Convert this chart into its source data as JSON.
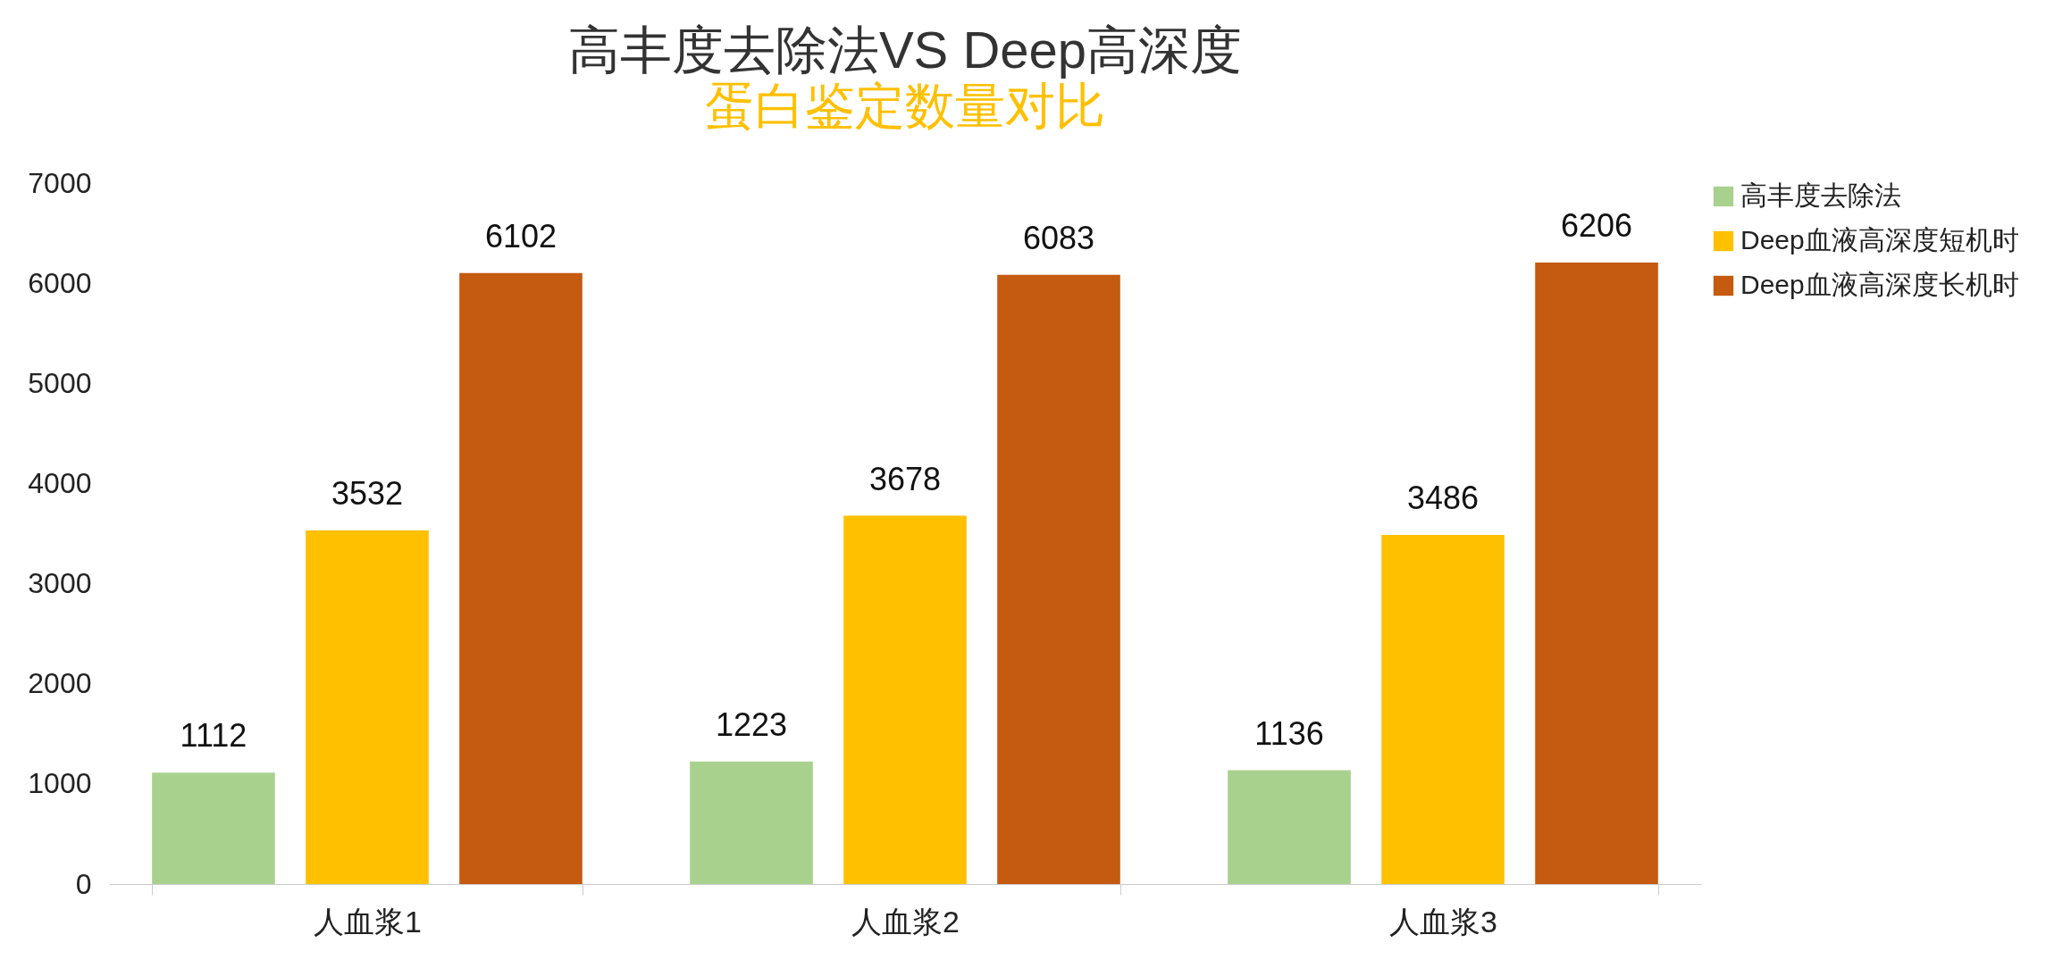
{
  "chart_data": {
    "type": "bar",
    "title": "高丰度去除法VS Deep高深度",
    "subtitle": "蛋白鉴定数量对比",
    "categories": [
      "人血浆1",
      "人血浆2",
      "人血浆3"
    ],
    "series": [
      {
        "name": "高丰度去除法",
        "color": "#a9d18e",
        "values": [
          1112,
          1223,
          1136
        ]
      },
      {
        "name": "Deep血液高深度短机时",
        "color": "#ffc000",
        "values": [
          3532,
          3678,
          3486
        ]
      },
      {
        "name": "Deep血液高深度长机时",
        "color": "#c55a11",
        "values": [
          6102,
          6083,
          6206
        ]
      }
    ],
    "ylim": [
      0,
      7000
    ],
    "yticks": [
      0,
      1000,
      2000,
      3000,
      4000,
      5000,
      6000,
      7000
    ],
    "grid": false,
    "legend": "right",
    "data_labels": true
  }
}
